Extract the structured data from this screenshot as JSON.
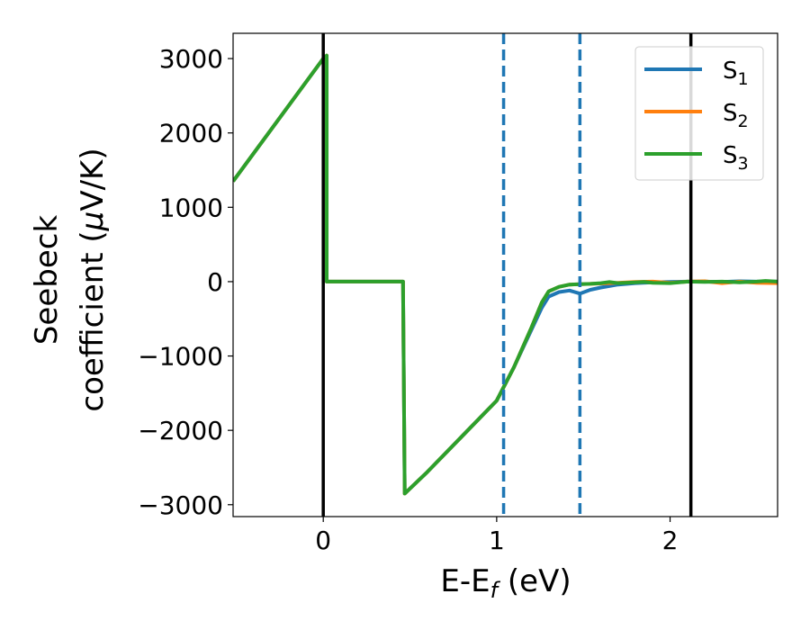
{
  "chart_data": {
    "type": "line",
    "xlabel": {
      "main": "E-E",
      "sub": "f",
      "suffix": " (eV)"
    },
    "ylabel": {
      "line1": "Seebeck",
      "line2_pre": "coefficient  (",
      "mu": "μ",
      "line2_post": "V/K)"
    },
    "xlim": [
      -0.52,
      2.62
    ],
    "ylim": [
      -3160,
      3340
    ],
    "xticks": [
      {
        "value": 0,
        "label": "0"
      },
      {
        "value": 1,
        "label": "1"
      },
      {
        "value": 2,
        "label": "2"
      }
    ],
    "yticks": [
      {
        "value": 3000,
        "label": "3000"
      },
      {
        "value": 2000,
        "label": "2000"
      },
      {
        "value": 1000,
        "label": "1000"
      },
      {
        "value": 0,
        "label": "0"
      },
      {
        "value": -1000,
        "label": "−1000"
      },
      {
        "value": -2000,
        "label": "−2000"
      },
      {
        "value": -3000,
        "label": "−3000"
      }
    ],
    "vlines": [
      {
        "x": 0.0,
        "style": "solid",
        "color": "#000000"
      },
      {
        "x": 1.04,
        "style": "dashed",
        "color": "#1f77b4"
      },
      {
        "x": 1.48,
        "style": "dashed",
        "color": "#1f77b4"
      },
      {
        "x": 2.12,
        "style": "solid",
        "color": "#000000"
      }
    ],
    "legend_position": "top-right",
    "series": [
      {
        "name": "S",
        "sub": "1",
        "color": "#1f77b4",
        "points": [
          [
            -0.52,
            1350
          ],
          [
            0.0,
            3000
          ],
          [
            0.02,
            3040
          ],
          [
            0.02,
            0
          ],
          [
            0.46,
            0
          ],
          [
            0.47,
            -2850
          ],
          [
            0.6,
            -2560
          ],
          [
            0.8,
            -2080
          ],
          [
            1.0,
            -1600
          ],
          [
            1.1,
            -1150
          ],
          [
            1.2,
            -650
          ],
          [
            1.26,
            -350
          ],
          [
            1.3,
            -200
          ],
          [
            1.36,
            -140
          ],
          [
            1.42,
            -120
          ],
          [
            1.48,
            -160
          ],
          [
            1.54,
            -110
          ],
          [
            1.6,
            -80
          ],
          [
            1.7,
            -40
          ],
          [
            1.8,
            -20
          ],
          [
            1.9,
            -10
          ],
          [
            2.0,
            -5
          ],
          [
            2.1,
            0
          ],
          [
            2.2,
            0
          ],
          [
            2.3,
            -5
          ],
          [
            2.4,
            5
          ],
          [
            2.5,
            0
          ],
          [
            2.62,
            0
          ]
        ]
      },
      {
        "name": "S",
        "sub": "2",
        "color": "#ff7f0e",
        "points": [
          [
            -0.52,
            1350
          ],
          [
            0.0,
            3000
          ],
          [
            0.02,
            3040
          ],
          [
            0.02,
            0
          ],
          [
            0.46,
            0
          ],
          [
            0.47,
            -2850
          ],
          [
            0.6,
            -2560
          ],
          [
            0.8,
            -2080
          ],
          [
            1.0,
            -1600
          ],
          [
            1.1,
            -1150
          ],
          [
            1.2,
            -620
          ],
          [
            1.26,
            -280
          ],
          [
            1.3,
            -130
          ],
          [
            1.36,
            -70
          ],
          [
            1.42,
            -40
          ],
          [
            1.48,
            -35
          ],
          [
            1.54,
            -30
          ],
          [
            1.6,
            -25
          ],
          [
            1.7,
            -15
          ],
          [
            1.8,
            -5
          ],
          [
            1.9,
            0
          ],
          [
            2.0,
            -15
          ],
          [
            2.1,
            0
          ],
          [
            2.2,
            5
          ],
          [
            2.3,
            -20
          ],
          [
            2.4,
            0
          ],
          [
            2.5,
            -15
          ],
          [
            2.62,
            -20
          ]
        ]
      },
      {
        "name": "S",
        "sub": "3",
        "color": "#2ca02c",
        "points": [
          [
            -0.52,
            1350
          ],
          [
            0.0,
            3000
          ],
          [
            0.02,
            3040
          ],
          [
            0.02,
            0
          ],
          [
            0.46,
            0
          ],
          [
            0.47,
            -2850
          ],
          [
            0.6,
            -2560
          ],
          [
            0.8,
            -2080
          ],
          [
            1.0,
            -1600
          ],
          [
            1.1,
            -1150
          ],
          [
            1.2,
            -620
          ],
          [
            1.26,
            -280
          ],
          [
            1.3,
            -130
          ],
          [
            1.36,
            -70
          ],
          [
            1.42,
            -40
          ],
          [
            1.48,
            -35
          ],
          [
            1.54,
            -30
          ],
          [
            1.6,
            -20
          ],
          [
            1.65,
            -5
          ],
          [
            1.7,
            -20
          ],
          [
            1.8,
            -10
          ],
          [
            1.85,
            -5
          ],
          [
            1.9,
            -15
          ],
          [
            2.0,
            -20
          ],
          [
            2.1,
            0
          ],
          [
            2.2,
            -5
          ],
          [
            2.3,
            0
          ],
          [
            2.4,
            -10
          ],
          [
            2.5,
            0
          ],
          [
            2.55,
            10
          ],
          [
            2.62,
            0
          ]
        ]
      }
    ]
  }
}
